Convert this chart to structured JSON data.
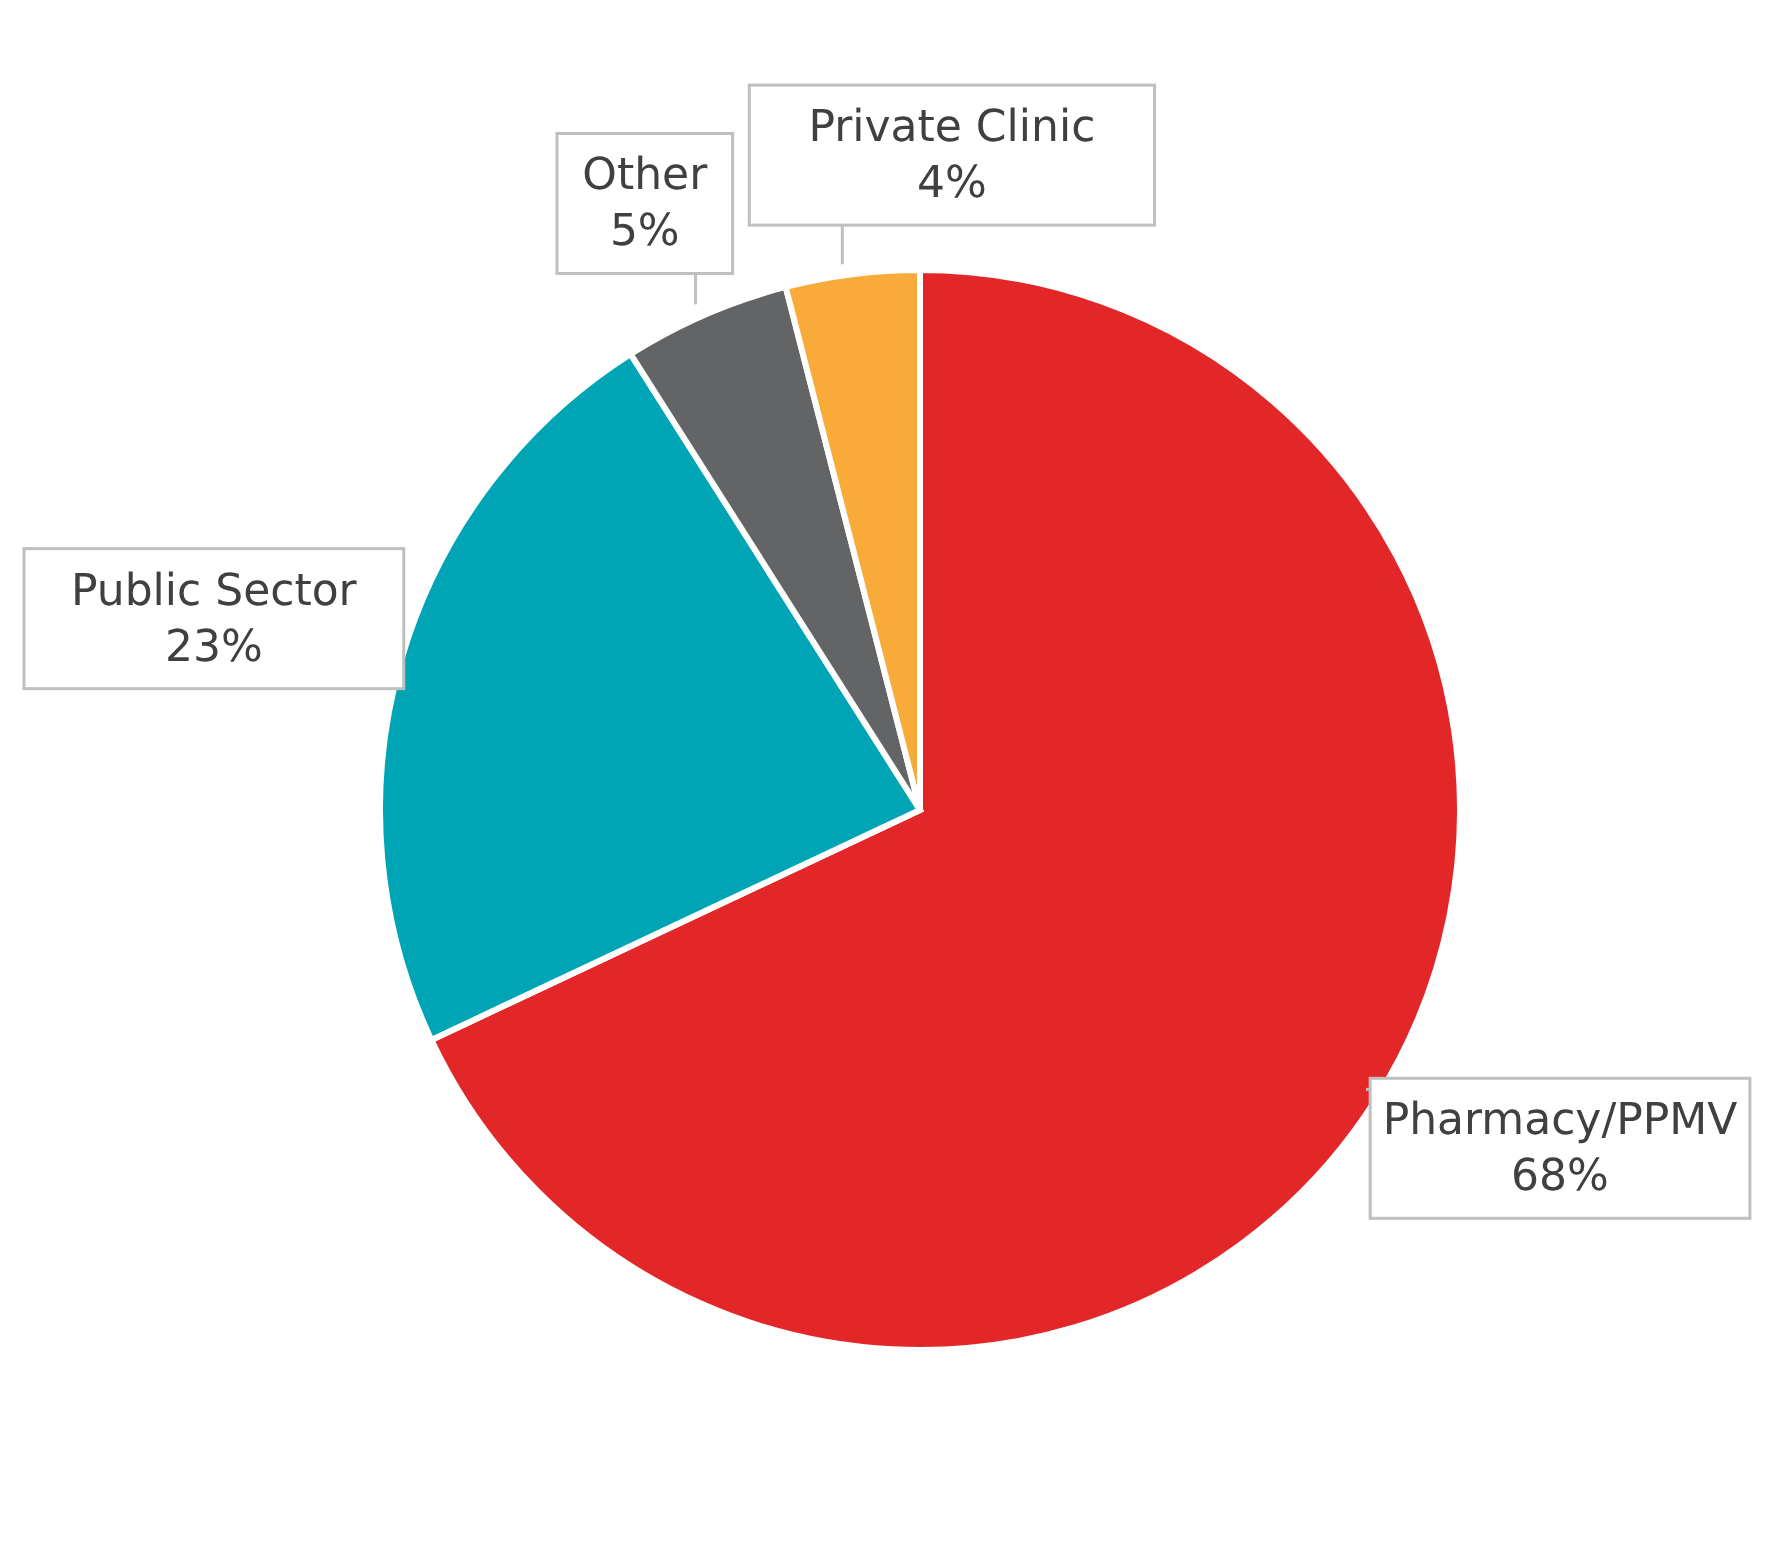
{
  "chart_data": {
    "type": "pie",
    "categories": [
      "Pharmacy/PPMV",
      "Public Sector",
      "Other",
      "Private Clinic"
    ],
    "values": [
      68,
      23,
      5,
      4
    ],
    "value_labels": [
      "68%",
      "23%",
      "5%",
      "4%"
    ],
    "colors": [
      "#e32628",
      "#00a5b5",
      "#636466",
      "#f9ab3a"
    ]
  }
}
